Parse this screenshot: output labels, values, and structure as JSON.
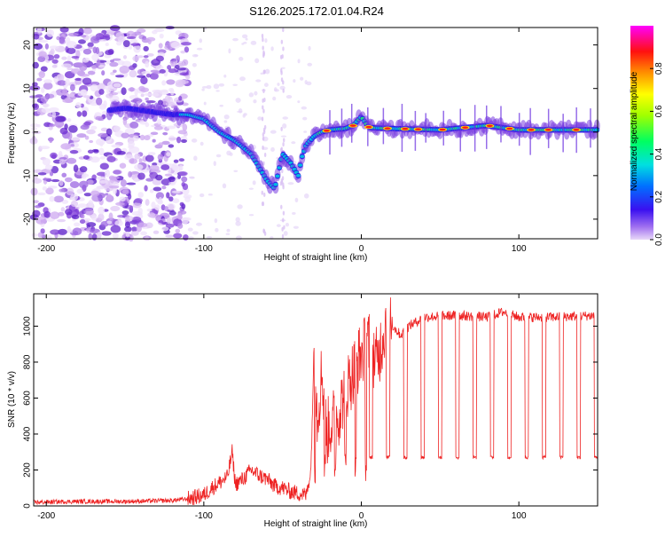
{
  "title": "S126.2025.172.01.04.R24",
  "chart_data": [
    {
      "type": "heatmap",
      "xlabel": "Height of straight line (km)",
      "ylabel": "Frequency (Hz)",
      "xlim": [
        -208,
        150
      ],
      "ylim": [
        -24.5,
        24
      ],
      "xticks": [
        -200,
        -100,
        0,
        100
      ],
      "yticks": [
        -20,
        -10,
        0,
        10,
        20
      ],
      "colorbar": {
        "label": "Normalized spectral amplitude",
        "range": [
          0,
          1
        ],
        "ticks": [
          "0.0",
          "0.2",
          "0.4",
          "0.6",
          "0.8"
        ],
        "tick_values": [
          0,
          0.2,
          0.4,
          0.6,
          0.8
        ]
      },
      "ridge": {
        "x": [
          -160,
          -150,
          -120,
          -110,
          -100,
          -90,
          -80,
          -70,
          -60,
          -55,
          -50,
          -45,
          -40,
          -38,
          -35,
          -30,
          -25,
          -20,
          -10,
          -5,
          0,
          5,
          20,
          50,
          80,
          100,
          150
        ],
        "y": [
          5,
          5.5,
          4,
          4,
          3,
          0,
          -2,
          -5,
          -11,
          -13,
          -5,
          -7,
          -10,
          -6,
          -3,
          -1,
          0,
          0.5,
          0.8,
          1.5,
          3.5,
          1,
          0.8,
          0.5,
          1.5,
          0.5,
          0.5
        ]
      }
    },
    {
      "type": "line",
      "xlabel": "Height of straight line (km)",
      "ylabel": "SNR (10 * v/v)",
      "xlim": [
        -208,
        150
      ],
      "ylim": [
        0,
        1180
      ],
      "xticks": [
        -200,
        -100,
        0,
        100
      ],
      "yticks": [
        0,
        200,
        400,
        600,
        800,
        1000
      ],
      "color": "#ee2222",
      "series": [
        {
          "x": [
            -208,
            -180,
            -150,
            -120,
            -110,
            -100,
            -95,
            -90,
            -85,
            -82,
            -80,
            -75,
            -70,
            -65,
            -60,
            -55,
            -50,
            -45,
            -40,
            -35,
            -32,
            -30,
            -28,
            -25,
            -22,
            -20,
            -15,
            -10,
            -5,
            0,
            5,
            10,
            15,
            18,
            20,
            25,
            30,
            40,
            60,
            80,
            90,
            100,
            120,
            150
          ],
          "y": [
            20,
            25,
            25,
            30,
            40,
            60,
            100,
            130,
            160,
            300,
            120,
            150,
            200,
            170,
            150,
            110,
            100,
            80,
            70,
            60,
            200,
            900,
            500,
            750,
            400,
            450,
            500,
            650,
            750,
            850,
            900,
            800,
            1000,
            1100,
            1000,
            950,
            1000,
            1050,
            1060,
            1050,
            1080,
            1050,
            1050,
            1060
          ]
        }
      ],
      "dips": {
        "start": 5,
        "interval": 11,
        "level": 270
      }
    }
  ]
}
